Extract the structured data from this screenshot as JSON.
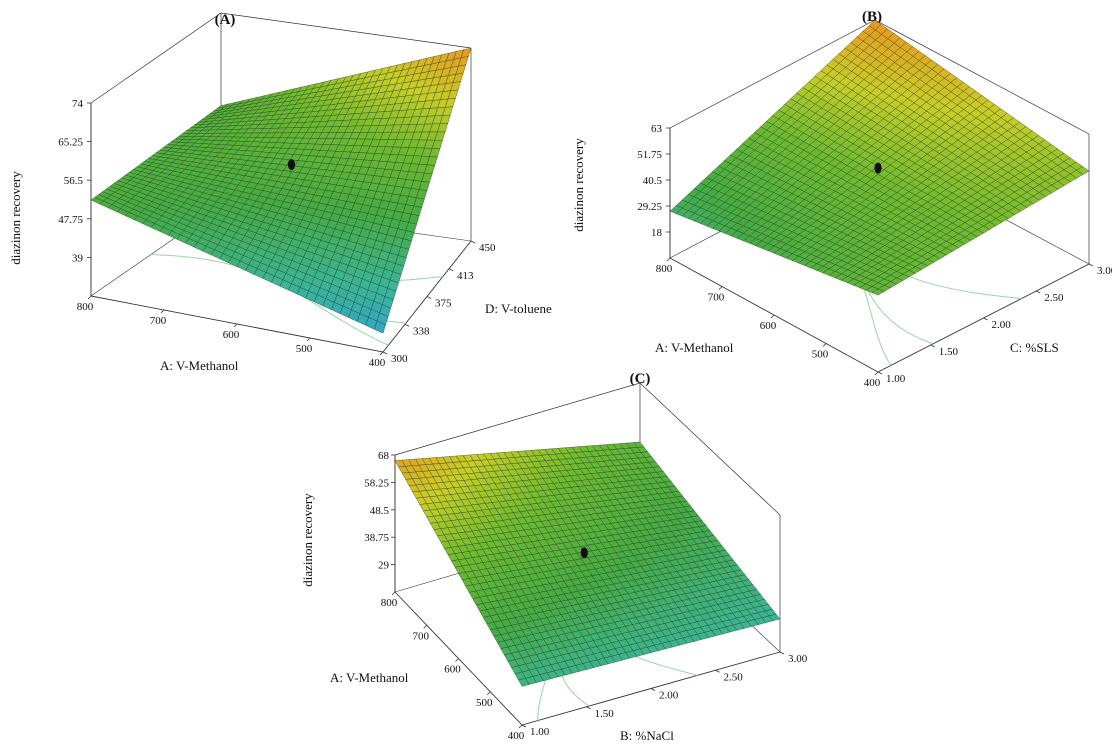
{
  "figure": {
    "panels": [
      "(A)",
      "(B)",
      "(C)"
    ]
  },
  "chart_data": [
    {
      "type": "surface3d",
      "panel_label": "(A)",
      "zlabel": "diazinon recovery",
      "xlabel": "A: V-Methanol",
      "ylabel": "D: V-toluene",
      "x_ticks": [
        "800",
        "700",
        "600",
        "500",
        "400"
      ],
      "y_ticks": [
        "300",
        "338",
        "375",
        "413",
        "450"
      ],
      "z_ticks": [
        "39",
        "47.75",
        "56.5",
        "65.25",
        "74"
      ],
      "xlim": [
        400,
        800
      ],
      "ylim": [
        300,
        450
      ],
      "zlim": [
        30.25,
        74
      ],
      "corners": [
        {
          "x": 800,
          "y": 300,
          "z": 52
        },
        {
          "x": 400,
          "y": 300,
          "z": 34.5
        },
        {
          "x": 400,
          "y": 450,
          "z": 74
        },
        {
          "x": 800,
          "y": 450,
          "z": 53
        }
      ],
      "center_point": {
        "x": 600,
        "y": 375,
        "z": 55
      }
    },
    {
      "type": "surface3d",
      "panel_label": "(B)",
      "zlabel": "diazinon recovery",
      "xlabel": "A: V-Methanol",
      "ylabel": "C: %SLS",
      "x_ticks": [
        "800",
        "700",
        "600",
        "500",
        "400"
      ],
      "y_ticks": [
        "1.00",
        "1.50",
        "2.00",
        "2.50",
        "3.00"
      ],
      "z_ticks": [
        "18",
        "29.25",
        "40.5",
        "51.75",
        "63"
      ],
      "xlim": [
        400,
        800
      ],
      "ylim": [
        1.0,
        3.0
      ],
      "zlim": [
        6.75,
        63
      ],
      "corners": [
        {
          "x": 800,
          "y": 1.0,
          "z": 27
        },
        {
          "x": 400,
          "y": 1.0,
          "z": 40
        },
        {
          "x": 400,
          "y": 3.0,
          "z": 47
        },
        {
          "x": 800,
          "y": 3.0,
          "z": 63
        }
      ],
      "center_point": {
        "x": 600,
        "y": 2.0,
        "z": 47
      }
    },
    {
      "type": "surface3d",
      "panel_label": "(C)",
      "zlabel": "diazinon recovery",
      "xlabel": "A: V-Methanol",
      "ylabel": "B: %NaCl",
      "x_ticks": [
        "800",
        "700",
        "600",
        "500",
        "400"
      ],
      "y_ticks": [
        "1.00",
        "1.50",
        "2.00",
        "2.50",
        "3.00"
      ],
      "z_ticks": [
        "29",
        "38.75",
        "48.5",
        "58.25",
        "68"
      ],
      "xlim": [
        400,
        800
      ],
      "ylim": [
        1.0,
        3.0
      ],
      "zlim": [
        19.25,
        68
      ],
      "corners": [
        {
          "x": 800,
          "y": 1.0,
          "z": 66
        },
        {
          "x": 400,
          "y": 1.0,
          "z": 33
        },
        {
          "x": 400,
          "y": 3.0,
          "z": 31
        },
        {
          "x": 800,
          "y": 3.0,
          "z": 47
        }
      ],
      "center_point": {
        "x": 600,
        "y": 2.0,
        "z": 44
      }
    }
  ]
}
